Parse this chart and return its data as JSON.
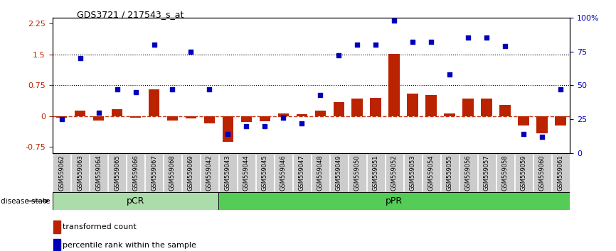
{
  "title": "GDS3721 / 217543_s_at",
  "samples": [
    "GSM559062",
    "GSM559063",
    "GSM559064",
    "GSM559065",
    "GSM559066",
    "GSM559067",
    "GSM559068",
    "GSM559069",
    "GSM559042",
    "GSM559043",
    "GSM559044",
    "GSM559045",
    "GSM559046",
    "GSM559047",
    "GSM559048",
    "GSM559049",
    "GSM559050",
    "GSM559051",
    "GSM559052",
    "GSM559053",
    "GSM559054",
    "GSM559055",
    "GSM559056",
    "GSM559057",
    "GSM559058",
    "GSM559059",
    "GSM559060",
    "GSM559061"
  ],
  "transformed_count": [
    -0.03,
    0.13,
    -0.1,
    0.17,
    -0.03,
    0.65,
    -0.1,
    -0.05,
    -0.17,
    -0.62,
    -0.14,
    -0.13,
    0.07,
    0.04,
    0.13,
    0.35,
    0.42,
    0.45,
    1.52,
    0.55,
    0.52,
    0.07,
    0.42,
    0.42,
    0.27,
    -0.22,
    -0.42,
    -0.22
  ],
  "percentile_rank": [
    25,
    70,
    30,
    47,
    45,
    80,
    47,
    75,
    47,
    14,
    20,
    20,
    26,
    22,
    43,
    72,
    80,
    80,
    98,
    82,
    82,
    58,
    85,
    85,
    79,
    14,
    12,
    47
  ],
  "group_labels": [
    "pCR",
    "pPR"
  ],
  "group_ranges": [
    [
      0,
      9
    ],
    [
      9,
      28
    ]
  ],
  "group_color_pcr": "#aaddaa",
  "group_color_ppr": "#55cc55",
  "ylim_left": [
    -0.9,
    2.4
  ],
  "ylim_right": [
    0,
    100
  ],
  "yticks_left": [
    -0.75,
    0.0,
    0.75,
    1.5,
    2.25
  ],
  "yticks_right": [
    0,
    25,
    50,
    75,
    100
  ],
  "hlines": [
    0.75,
    1.5
  ],
  "bar_color": "#bb2200",
  "dot_color": "#0000bb",
  "xtick_bg": "#cccccc",
  "legend_bar_label": "transformed count",
  "legend_dot_label": "percentile rank within the sample",
  "disease_state_label": "disease state"
}
